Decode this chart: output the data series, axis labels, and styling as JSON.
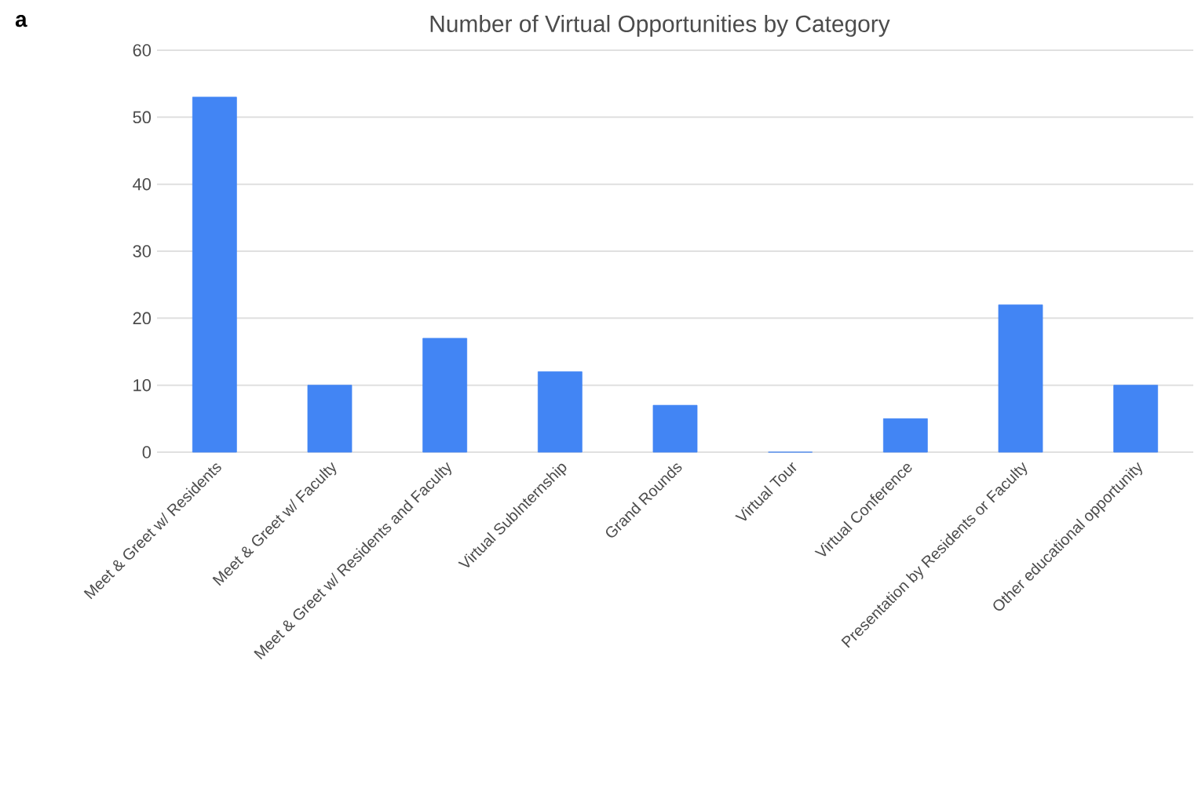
{
  "chart_data": {
    "type": "bar",
    "title": "Number of Virtual Opportunities by Category",
    "annotations": [
      "a"
    ],
    "categories": [
      "Meet & Greet w/ Residents",
      "Meet & Greet w/ Faculty",
      "Meet & Greet w/ Residents and Faculty",
      "Virtual SubInternship",
      "Grand Rounds",
      "Virtual Tour",
      "Virtual Conference",
      "Presentation by Residents or Faculty",
      "Other educational opportunity"
    ],
    "values": [
      53,
      10,
      17,
      12,
      7,
      0,
      5,
      22,
      10
    ],
    "color": "#4285f4",
    "ylim": [
      0,
      60
    ],
    "yticks": [
      0,
      10,
      20,
      30,
      40,
      50,
      60
    ],
    "grid": "y"
  }
}
